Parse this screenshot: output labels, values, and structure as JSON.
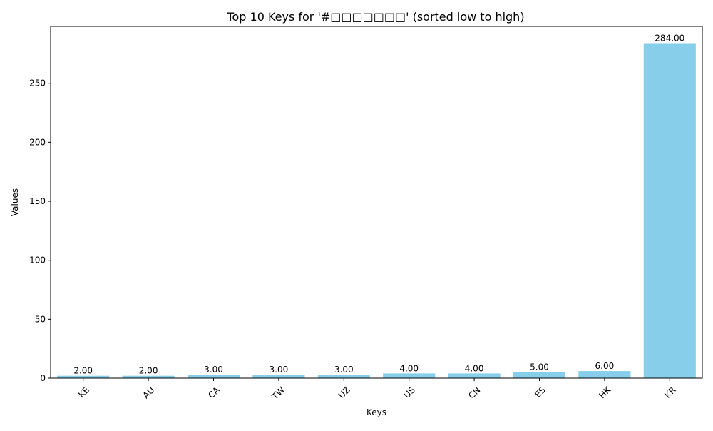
{
  "chart_data": {
    "type": "bar",
    "title": "Top 10 Keys for '#□□□□□□□' (sorted low to high)",
    "xlabel": "Keys",
    "ylabel": "Values",
    "categories": [
      "KE",
      "AU",
      "CA",
      "TW",
      "UZ",
      "US",
      "CN",
      "ES",
      "HK",
      "KR"
    ],
    "values": [
      2,
      2,
      3,
      3,
      3,
      4,
      4,
      5,
      6,
      284
    ],
    "value_labels": [
      "2.00",
      "2.00",
      "3.00",
      "3.00",
      "3.00",
      "4.00",
      "4.00",
      "5.00",
      "6.00",
      "284.00"
    ],
    "ylim": [
      0,
      298.2
    ],
    "yticks": [
      0,
      50,
      100,
      150,
      200,
      250
    ],
    "ytick_labels": [
      "0",
      "50",
      "100",
      "150",
      "200",
      "250"
    ],
    "grid": false,
    "legend": "none",
    "bar_color": "#87CEEB"
  }
}
